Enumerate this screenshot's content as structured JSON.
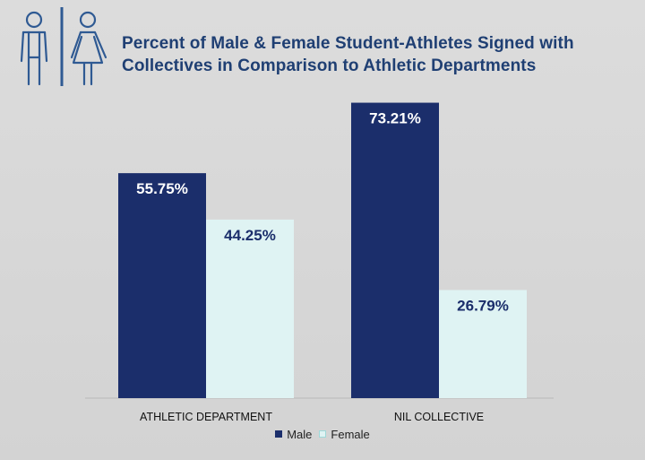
{
  "chart_data": {
    "type": "bar",
    "title_lines": [
      "Percent of Male & Female Student-Athletes Signed with",
      "Collectives in Comparison to Athletic Departments"
    ],
    "categories": [
      "ATHLETIC DEPARTMENT",
      "NIL COLLECTIVE"
    ],
    "series": [
      {
        "name": "Male",
        "color": "#1b2e6b",
        "values": [
          55.75,
          73.21
        ],
        "labels": [
          "55.75%",
          "73.21%"
        ]
      },
      {
        "name": "Female",
        "color": "#dff3f3",
        "values": [
          44.25,
          26.79
        ],
        "labels": [
          "44.25%",
          "26.79%"
        ]
      }
    ],
    "ylim": [
      0,
      80
    ],
    "grid": false,
    "legend": "bottom",
    "icons": [
      "male-restroom-icon",
      "female-restroom-icon"
    ],
    "accent_color": "#1f3f73"
  }
}
